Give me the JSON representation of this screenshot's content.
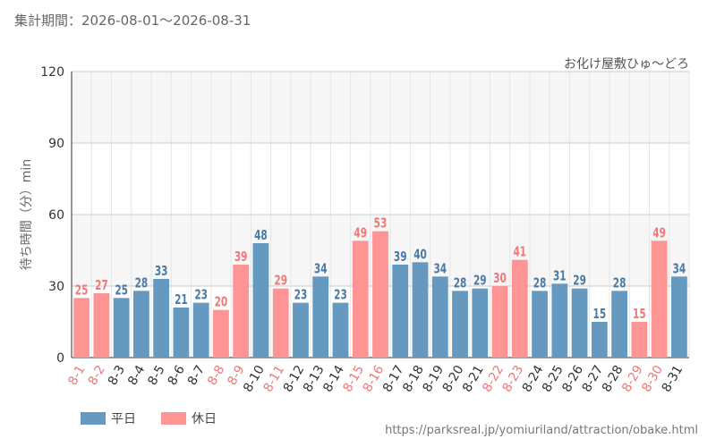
{
  "header": {
    "period_label": "集計期間：2026-08-01～2026-08-31",
    "attraction_name": "お化け屋敷ひゅ～どろ"
  },
  "colors": {
    "weekday": "#6699c0",
    "holiday": "#ff9494",
    "weekday_text": "#4a7aa6",
    "holiday_text": "#f07878"
  },
  "legend": [
    {
      "key": "weekday",
      "label": "平日"
    },
    {
      "key": "holiday",
      "label": "休日"
    }
  ],
  "footer": {
    "source_url": "https://parksreal.jp/yomiuriland/attraction/obake.html"
  },
  "chart_data": {
    "type": "bar",
    "ylabel": "待ち時間（分）min",
    "ylim": [
      0,
      120
    ],
    "yticks": [
      0,
      30,
      60,
      90,
      120
    ],
    "grid": true,
    "categories": [
      "8-1",
      "8-2",
      "8-3",
      "8-4",
      "8-5",
      "8-6",
      "8-7",
      "8-8",
      "8-9",
      "8-10",
      "8-11",
      "8-12",
      "8-13",
      "8-14",
      "8-15",
      "8-16",
      "8-17",
      "8-18",
      "8-19",
      "8-20",
      "8-21",
      "8-22",
      "8-23",
      "8-24",
      "8-25",
      "8-26",
      "8-27",
      "8-28",
      "8-29",
      "8-30",
      "8-31"
    ],
    "values": [
      25,
      27,
      25,
      28,
      33,
      21,
      23,
      20,
      39,
      48,
      29,
      23,
      34,
      23,
      49,
      53,
      39,
      40,
      34,
      28,
      29,
      30,
      41,
      28,
      31,
      29,
      15,
      28,
      15,
      49,
      34
    ],
    "day_type": [
      "holiday",
      "holiday",
      "weekday",
      "weekday",
      "weekday",
      "weekday",
      "weekday",
      "holiday",
      "holiday",
      "weekday",
      "holiday",
      "weekday",
      "weekday",
      "weekday",
      "holiday",
      "holiday",
      "weekday",
      "weekday",
      "weekday",
      "weekday",
      "weekday",
      "holiday",
      "holiday",
      "weekday",
      "weekday",
      "weekday",
      "weekday",
      "weekday",
      "holiday",
      "holiday",
      "weekday"
    ]
  }
}
